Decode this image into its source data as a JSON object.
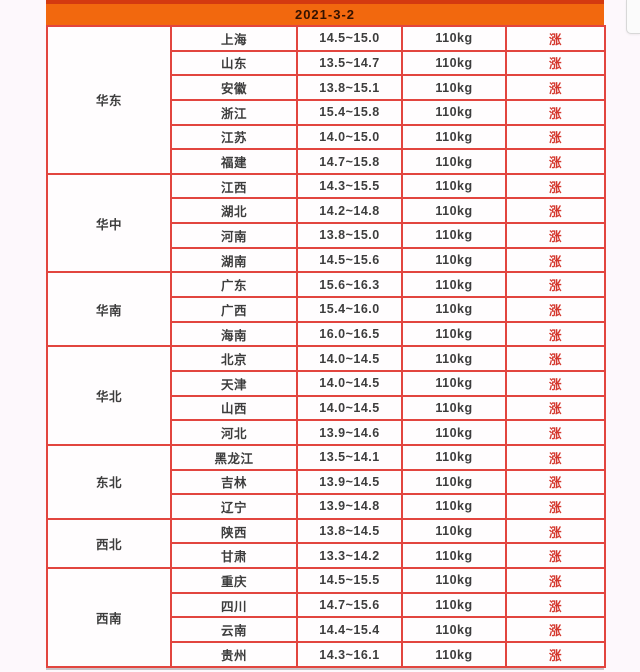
{
  "header": {
    "date": "2021-3-2"
  },
  "colors": {
    "top_strip": "#d43a10",
    "date_band_bg": "#f2680e",
    "date_text": "#331200",
    "table_border": "#e2453f",
    "status_text": "#d4382e",
    "cell_text": "#3d3d3d",
    "page_bg": "#fdf8fc"
  },
  "table": {
    "weight_label": "110kg",
    "status_label": "涨",
    "groups": [
      {
        "region": "华东",
        "rows": [
          {
            "province": "上海",
            "price": "14.5~15.0",
            "weight": "110kg",
            "status": "涨"
          },
          {
            "province": "山东",
            "price": "13.5~14.7",
            "weight": "110kg",
            "status": "涨"
          },
          {
            "province": "安徽",
            "price": "13.8~15.1",
            "weight": "110kg",
            "status": "涨"
          },
          {
            "province": "浙江",
            "price": "15.4~15.8",
            "weight": "110kg",
            "status": "涨"
          },
          {
            "province": "江苏",
            "price": "14.0~15.0",
            "weight": "110kg",
            "status": "涨"
          },
          {
            "province": "福建",
            "price": "14.7~15.8",
            "weight": "110kg",
            "status": "涨"
          }
        ]
      },
      {
        "region": "华中",
        "rows": [
          {
            "province": "江西",
            "price": "14.3~15.5",
            "weight": "110kg",
            "status": "涨"
          },
          {
            "province": "湖北",
            "price": "14.2~14.8",
            "weight": "110kg",
            "status": "涨"
          },
          {
            "province": "河南",
            "price": "13.8~15.0",
            "weight": "110kg",
            "status": "涨"
          },
          {
            "province": "湖南",
            "price": "14.5~15.6",
            "weight": "110kg",
            "status": "涨"
          }
        ]
      },
      {
        "region": "华南",
        "rows": [
          {
            "province": "广东",
            "price": "15.6~16.3",
            "weight": "110kg",
            "status": "涨"
          },
          {
            "province": "广西",
            "price": "15.4~16.0",
            "weight": "110kg",
            "status": "涨"
          },
          {
            "province": "海南",
            "price": "16.0~16.5",
            "weight": "110kg",
            "status": "涨"
          }
        ]
      },
      {
        "region": "华北",
        "rows": [
          {
            "province": "北京",
            "price": "14.0~14.5",
            "weight": "110kg",
            "status": "涨"
          },
          {
            "province": "天津",
            "price": "14.0~14.5",
            "weight": "110kg",
            "status": "涨"
          },
          {
            "province": "山西",
            "price": "14.0~14.5",
            "weight": "110kg",
            "status": "涨"
          },
          {
            "province": "河北",
            "price": "13.9~14.6",
            "weight": "110kg",
            "status": "涨"
          }
        ]
      },
      {
        "region": "东北",
        "rows": [
          {
            "province": "黑龙江",
            "price": "13.5~14.1",
            "weight": "110kg",
            "status": "涨"
          },
          {
            "province": "吉林",
            "price": "13.9~14.5",
            "weight": "110kg",
            "status": "涨"
          },
          {
            "province": "辽宁",
            "price": "13.9~14.8",
            "weight": "110kg",
            "status": "涨"
          }
        ]
      },
      {
        "region": "西北",
        "rows": [
          {
            "province": "陕西",
            "price": "13.8~14.5",
            "weight": "110kg",
            "status": "涨"
          },
          {
            "province": "甘肃",
            "price": "13.3~14.2",
            "weight": "110kg",
            "status": "涨"
          }
        ]
      },
      {
        "region": "西南",
        "rows": [
          {
            "province": "重庆",
            "price": "14.5~15.5",
            "weight": "110kg",
            "status": "涨"
          },
          {
            "province": "四川",
            "price": "14.7~15.6",
            "weight": "110kg",
            "status": "涨"
          },
          {
            "province": "云南",
            "price": "14.4~15.4",
            "weight": "110kg",
            "status": "涨"
          },
          {
            "province": "贵州",
            "price": "14.3~16.1",
            "weight": "110kg",
            "status": "涨"
          }
        ]
      }
    ]
  }
}
